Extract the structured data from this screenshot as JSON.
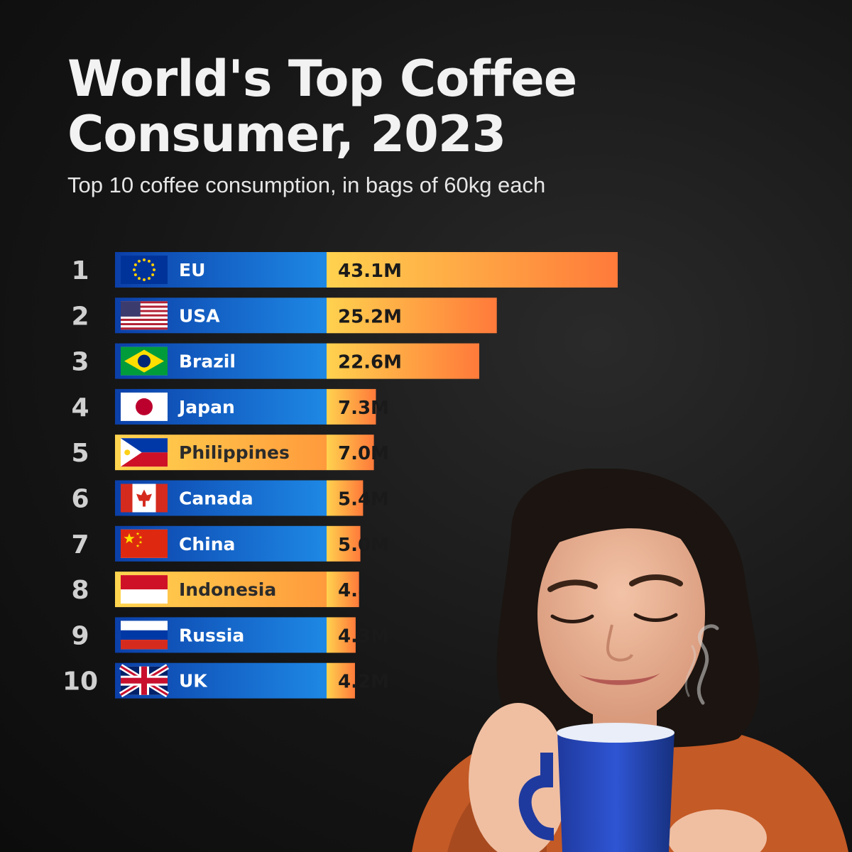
{
  "title": "World's Top Coffee Consumer, 2023",
  "subtitle": "Top 10 coffee consumption, in bags of 60kg each",
  "colors": {
    "label_blue": "#1565c0",
    "label_orange": "#ffc049",
    "value_orange_start": "#ffd24f",
    "value_orange_end": "#ff7a3a"
  },
  "chart_data": {
    "type": "bar",
    "orientation": "horizontal",
    "unit": "M",
    "categories": [
      "EU",
      "USA",
      "Brazil",
      "Japan",
      "Philippines",
      "Canada",
      "China",
      "Indonesia",
      "Russia",
      "UK"
    ],
    "ranks": [
      "1",
      "2",
      "3",
      "4",
      "5",
      "6",
      "7",
      "8",
      "9",
      "10"
    ],
    "values": [
      43.1,
      25.2,
      22.6,
      7.3,
      7.0,
      5.4,
      5.0,
      4.8,
      4.3,
      4.2
    ],
    "value_labels": [
      "43.1M",
      "25.2M",
      "22.6M",
      "7.3M",
      "7.0M",
      "5.4M",
      "5.0M",
      "4.8M",
      "4.3M",
      "4.2M"
    ],
    "flags": [
      "eu-flag-icon",
      "usa-flag-icon",
      "brazil-flag-icon",
      "japan-flag-icon",
      "philippines-flag-icon",
      "canada-flag-icon",
      "china-flag-icon",
      "indonesia-flag-icon",
      "russia-flag-icon",
      "uk-flag-icon"
    ],
    "label_styles": [
      "blue",
      "blue",
      "blue",
      "blue",
      "orange",
      "blue",
      "blue",
      "orange",
      "blue",
      "blue"
    ]
  }
}
